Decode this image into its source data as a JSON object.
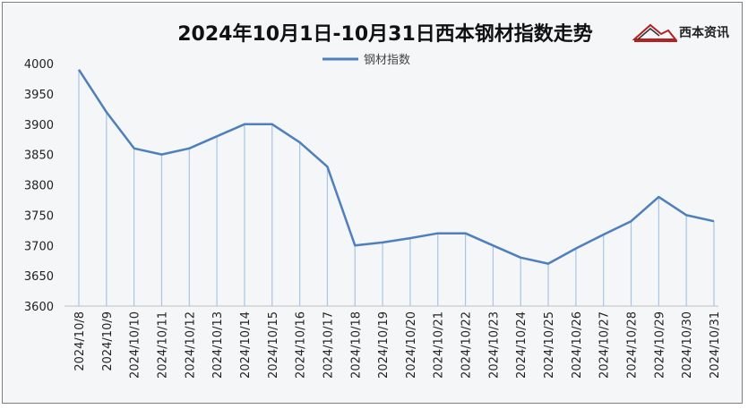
{
  "chart_data": {
    "type": "line",
    "title": "2024年10月1日-10月31日西本钢材指数走势",
    "categories": [
      "2024/10/8",
      "2024/10/9",
      "2024/10/10",
      "2024/10/11",
      "2024/10/12",
      "2024/10/13",
      "2024/10/14",
      "2024/10/15",
      "2024/10/16",
      "2024/10/17",
      "2024/10/18",
      "2024/10/19",
      "2024/10/20",
      "2024/10/21",
      "2024/10/22",
      "2024/10/23",
      "2024/10/24",
      "2024/10/25",
      "2024/10/26",
      "2024/10/27",
      "2024/10/28",
      "2024/10/29",
      "2024/10/30",
      "2024/10/31"
    ],
    "series": [
      {
        "name": "钢材指数",
        "values": [
          3990,
          3920,
          3860,
          3850,
          3860,
          3880,
          3900,
          3900,
          3870,
          3830,
          3700,
          3705,
          3712,
          3720,
          3720,
          3700,
          3680,
          3670,
          3695,
          3718,
          3740,
          3780,
          3750,
          3740
        ]
      }
    ],
    "yticks": [
      3600,
      3650,
      3700,
      3750,
      3800,
      3850,
      3900,
      3950,
      4000
    ],
    "ylim": [
      3600,
      4000
    ],
    "legend_position": "top-center",
    "grid": false,
    "line_color": "#4f7fbd",
    "drop_line_color": "#a9c4e6"
  },
  "logo": {
    "text": "西本资讯"
  }
}
